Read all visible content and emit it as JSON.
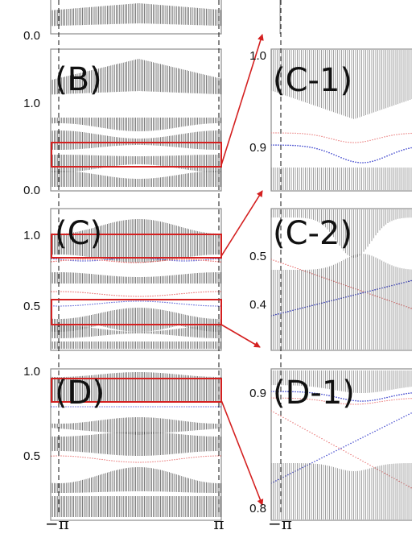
{
  "colors": {
    "band": "#222222",
    "frame": "#8c8c8c",
    "highlight": "#d42020",
    "edge_red": "#e04040",
    "edge_blue": "#2a32c8"
  },
  "x_axis": {
    "left_label": "−π",
    "right_label": "π"
  },
  "chart_data": [
    {
      "type": "line",
      "panel": "A",
      "label": "",
      "y_ticks": [
        "0.0"
      ]
    },
    {
      "type": "line",
      "panel": "B",
      "label": "(B)",
      "y_ticks": [
        "1.0",
        "0.0"
      ],
      "highlight_box_y": [
        0.27,
        0.48
      ]
    },
    {
      "type": "line",
      "panel": "C",
      "label": "(C)",
      "y_ticks": [
        "1.0",
        "0.5"
      ],
      "highlight_boxes_y": [
        [
          0.86,
          1.0
        ],
        [
          0.35,
          0.52
        ]
      ]
    },
    {
      "type": "line",
      "panel": "D",
      "label": "(D)",
      "y_ticks": [
        "1.0",
        "0.5"
      ],
      "highlight_box_y": [
        0.82,
        0.94
      ]
    },
    {
      "type": "line",
      "panel": "C-1",
      "label": "(C-1)",
      "y_ticks": [
        "1.0",
        "0.9"
      ]
    },
    {
      "type": "line",
      "panel": "C-2",
      "label": "(C-2)",
      "y_ticks": [
        "0.5",
        "0.4"
      ]
    },
    {
      "type": "line",
      "panel": "D-1",
      "label": "(D-1)",
      "y_ticks": [
        "0.9",
        "0.8"
      ]
    }
  ]
}
